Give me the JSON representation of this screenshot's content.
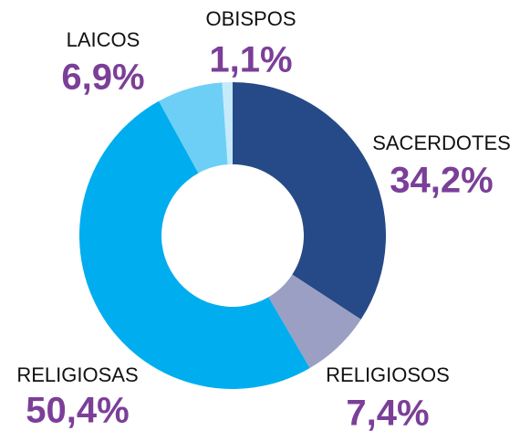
{
  "chart_data": {
    "type": "donut",
    "categories": [
      "SACERDOTES",
      "RELIGIOSOS",
      "RELIGIOSAS",
      "LAICOS",
      "OBISPOS"
    ],
    "values": [
      34.2,
      7.4,
      50.4,
      6.9,
      1.1
    ],
    "value_labels": [
      "34,2%",
      "7,4%",
      "50,4%",
      "6,9%",
      "1,1%"
    ],
    "colors": [
      "#264a87",
      "#9b9fc4",
      "#00adee",
      "#6dcff6",
      "#c5ebfb"
    ]
  }
}
